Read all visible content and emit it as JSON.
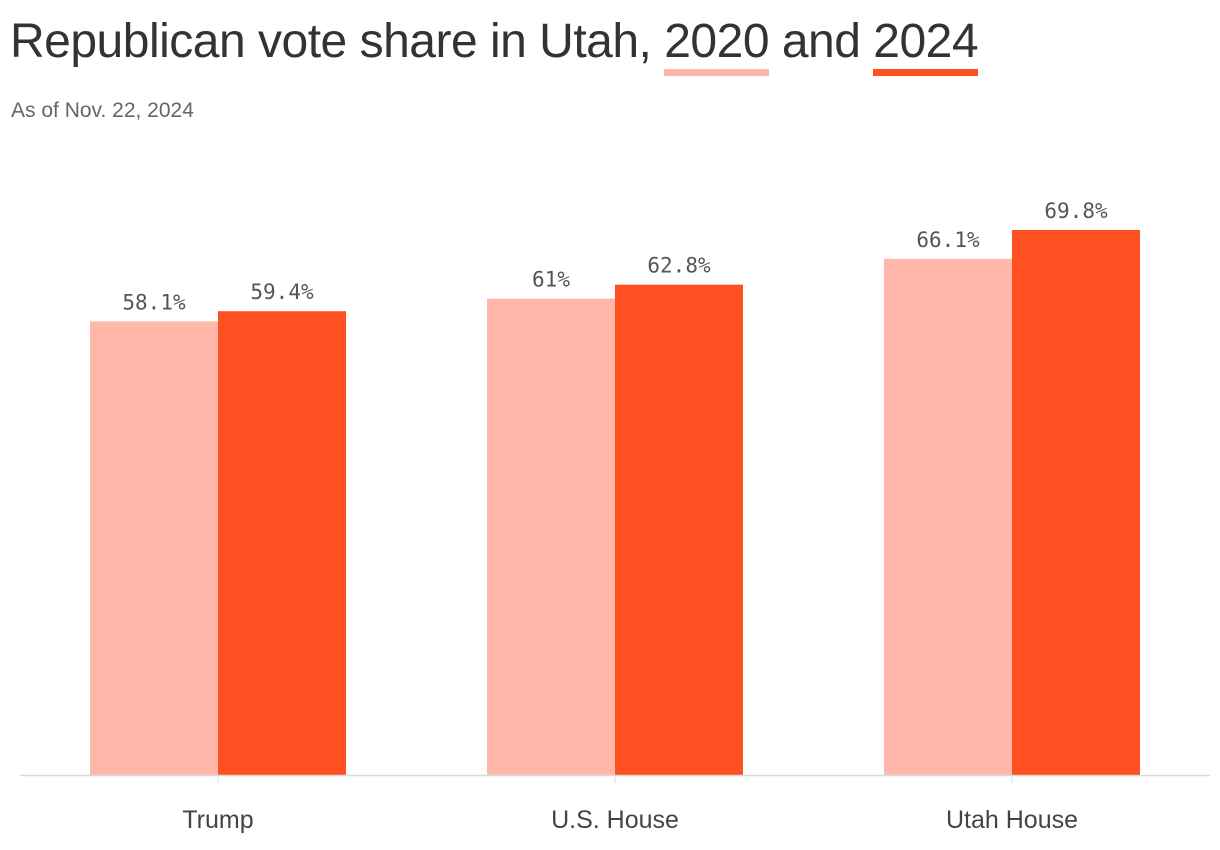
{
  "header": {
    "title_prefix": "Republican vote share in Utah, ",
    "title_year_a": "2020",
    "title_join": " and ",
    "title_year_b": "2024",
    "subtitle": "As of Nov. 22, 2024"
  },
  "colors": {
    "series_2020": "#ffb7aa",
    "series_2024": "#ff5021",
    "axis": "#d9d9d9"
  },
  "chart_data": {
    "type": "bar",
    "title": "Republican vote share in Utah, 2020 and 2024",
    "subtitle": "As of Nov. 22, 2024",
    "categories": [
      "Trump",
      "U.S. House",
      "Utah House"
    ],
    "series": [
      {
        "name": "2020",
        "values": [
          58.1,
          61,
          66.1
        ],
        "labels": [
          "58.1%",
          "61%",
          "66.1%"
        ],
        "color": "#ffb7aa"
      },
      {
        "name": "2024",
        "values": [
          59.4,
          62.8,
          69.8
        ],
        "labels": [
          "59.4%",
          "62.8%",
          "69.8%"
        ],
        "color": "#ff5021"
      }
    ],
    "xlabel": "",
    "ylabel": "",
    "ylim": [
      0,
      69.8
    ],
    "grid": false,
    "legend": "in title"
  }
}
